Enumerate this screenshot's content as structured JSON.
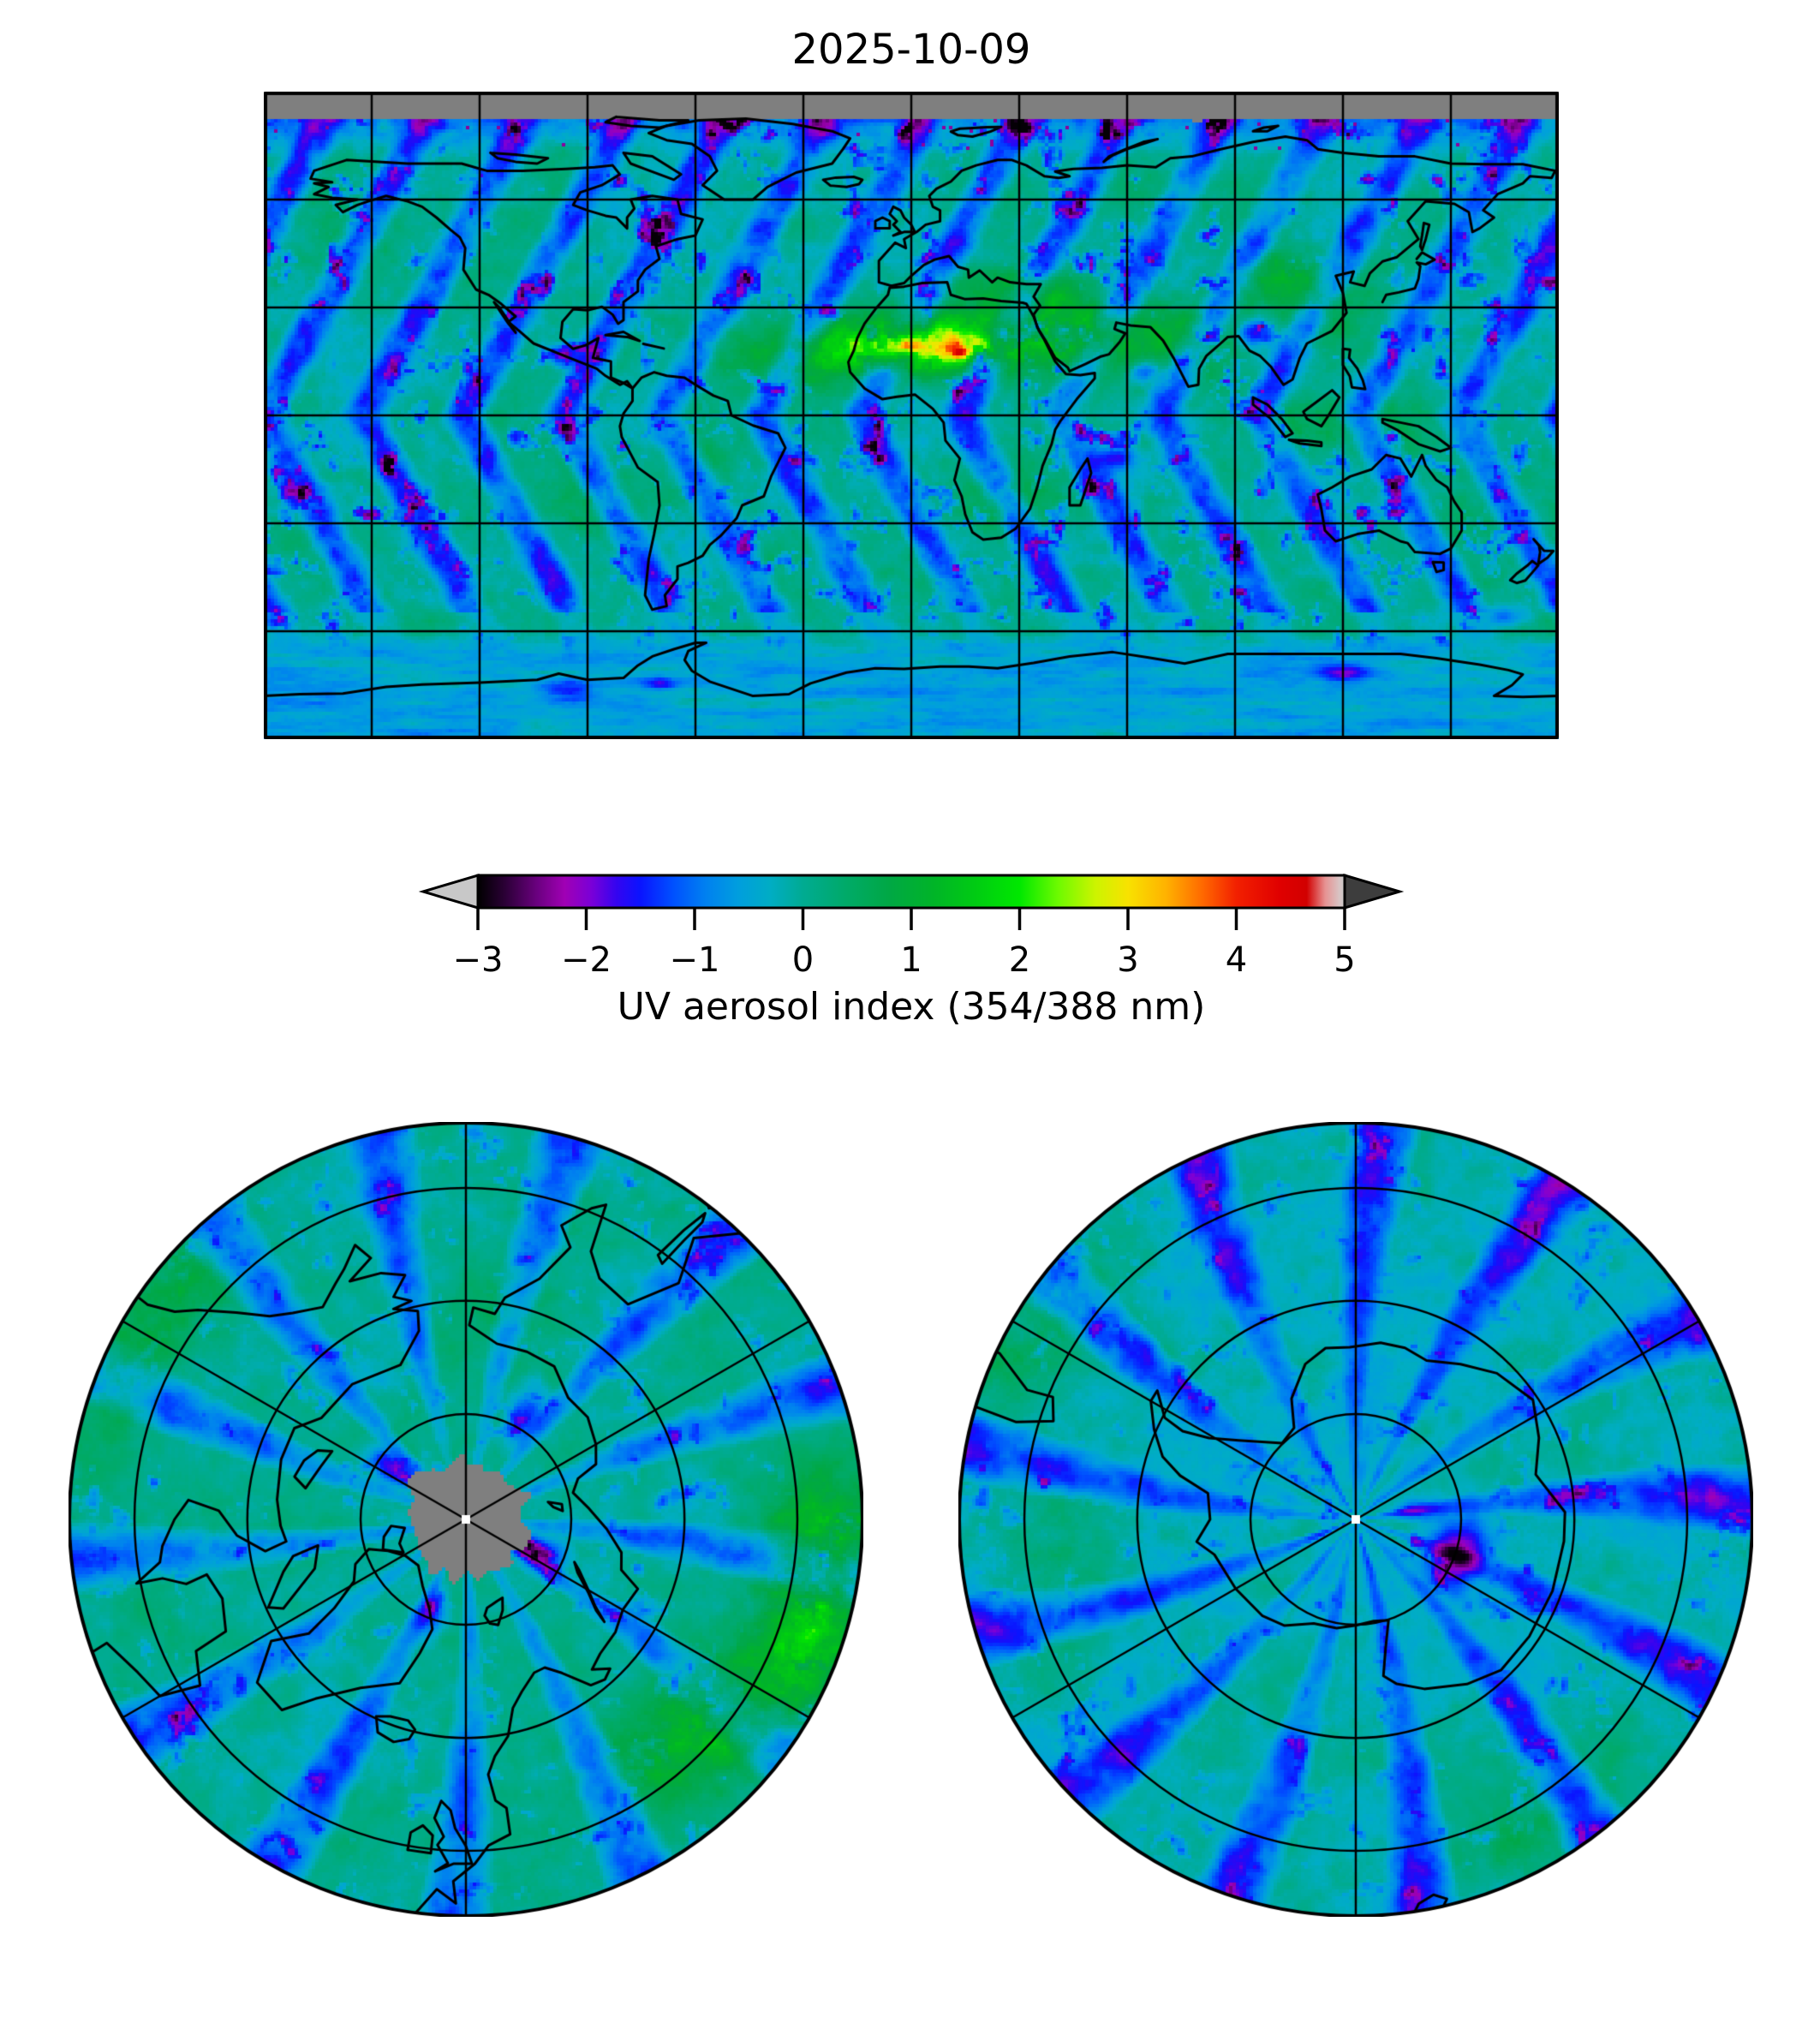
{
  "figure": {
    "title": "2025-10-09",
    "background_color": "#ffffff",
    "text_color": "#000000"
  },
  "chart_data": {
    "type": "heatmap",
    "title": "2025-10-09",
    "variable": "UV aerosol index (354/388 nm)",
    "colorbar": {
      "label": "UV aerosol index (354/388 nm)",
      "orientation": "horizontal",
      "range": [
        -3,
        5
      ],
      "extend": "both",
      "ticks": [
        {
          "value": -3,
          "label": "−3"
        },
        {
          "value": -2,
          "label": "−2"
        },
        {
          "value": -1,
          "label": "−1"
        },
        {
          "value": 0,
          "label": "0"
        },
        {
          "value": 1,
          "label": "1"
        },
        {
          "value": 2,
          "label": "2"
        },
        {
          "value": 3,
          "label": "3"
        },
        {
          "value": 4,
          "label": "4"
        },
        {
          "value": 5,
          "label": "5"
        }
      ],
      "under_arrow_color": "#c8c8c8",
      "over_arrow_color": "#3d3d3d",
      "no_data_color": "#7f7f7f",
      "stops": [
        [
          -3,
          "#000000"
        ],
        [
          -2.75,
          "#2b0036"
        ],
        [
          -2.45,
          "#6b0080"
        ],
        [
          -2.2,
          "#a000b4"
        ],
        [
          -1.95,
          "#7a00d8"
        ],
        [
          -1.72,
          "#3404f0"
        ],
        [
          -1.5,
          "#0a14ff"
        ],
        [
          -1.2,
          "#0050ff"
        ],
        [
          -0.9,
          "#0080f0"
        ],
        [
          -0.6,
          "#009ede"
        ],
        [
          -0.3,
          "#00adc4"
        ],
        [
          0,
          "#00ab92"
        ],
        [
          0.4,
          "#00aa68"
        ],
        [
          0.8,
          "#00a844"
        ],
        [
          1.2,
          "#00b428"
        ],
        [
          1.6,
          "#00cc12"
        ],
        [
          2,
          "#00e800"
        ],
        [
          2.35,
          "#6cfa00"
        ],
        [
          2.7,
          "#ccf400"
        ],
        [
          3,
          "#f8e200"
        ],
        [
          3.35,
          "#ffb200"
        ],
        [
          3.7,
          "#ff6600"
        ],
        [
          4,
          "#f22000"
        ],
        [
          4.4,
          "#e00000"
        ],
        [
          4.65,
          "#d20000"
        ],
        [
          4.82,
          "#e69292"
        ],
        [
          4.95,
          "#d8c4c4"
        ],
        [
          5,
          "#c8c8c8"
        ]
      ]
    },
    "panels": [
      {
        "id": "global",
        "projection": "equirectangular",
        "lon_range": [
          -180,
          180
        ],
        "lat_range": [
          -90,
          90
        ],
        "gridline_spacing_deg": 30,
        "coastlines": true,
        "notes": "gray band north of ~82°N = no data (polar night)"
      },
      {
        "id": "north_polar",
        "projection": "north-polar-stereographic",
        "edge_latitude_deg": 45,
        "meridian_spacing_deg": 60,
        "parallel_circles": 3,
        "coastlines": true,
        "notes": "gray disc of missing data centered on the North Pole"
      },
      {
        "id": "south_polar",
        "projection": "south-polar-stereographic",
        "edge_latitude_deg": -45,
        "meridian_spacing_deg": 60,
        "parallel_circles": 3,
        "coastlines": true,
        "notes": "Antarctica outline centered on the South Pole"
      }
    ],
    "observed_features": [
      {
        "region": "Sahara / Sahel (North Africa)",
        "signal": "strong positive UVAI ~1.5–3 (dust/smoke) with yellow-orange hotspots ~3–4 and a small red speck"
      },
      {
        "region": "Mediterranean / Middle East / Arabian Peninsula",
        "signal": "moderate positive UVAI ~1–2 (green)"
      },
      {
        "region": "India, East Asia, Indonesia",
        "signal": "patchy positive UVAI ~0.5–1.5"
      },
      {
        "region": "Global oceans",
        "signal": "alternating diagonal orbit-swath bands of negative UVAI (blue, ~−0.5 to −2) between teal ~0 background"
      },
      {
        "region": "Scattered cloud patches",
        "signal": "deep blue to magenta pixels, UVAI ~−2 to −2.5"
      },
      {
        "region": "North of ~82°N on global map",
        "signal": "gray = no data"
      },
      {
        "region": "North Pole (left polar panel)",
        "signal": "gray no-data disc around pole; green patches toward eastern limb"
      },
      {
        "region": "South Pole (right polar panel)",
        "signal": "radial swaths converging on pole; small magenta patch (~−2.3) just east of the pole"
      }
    ]
  }
}
